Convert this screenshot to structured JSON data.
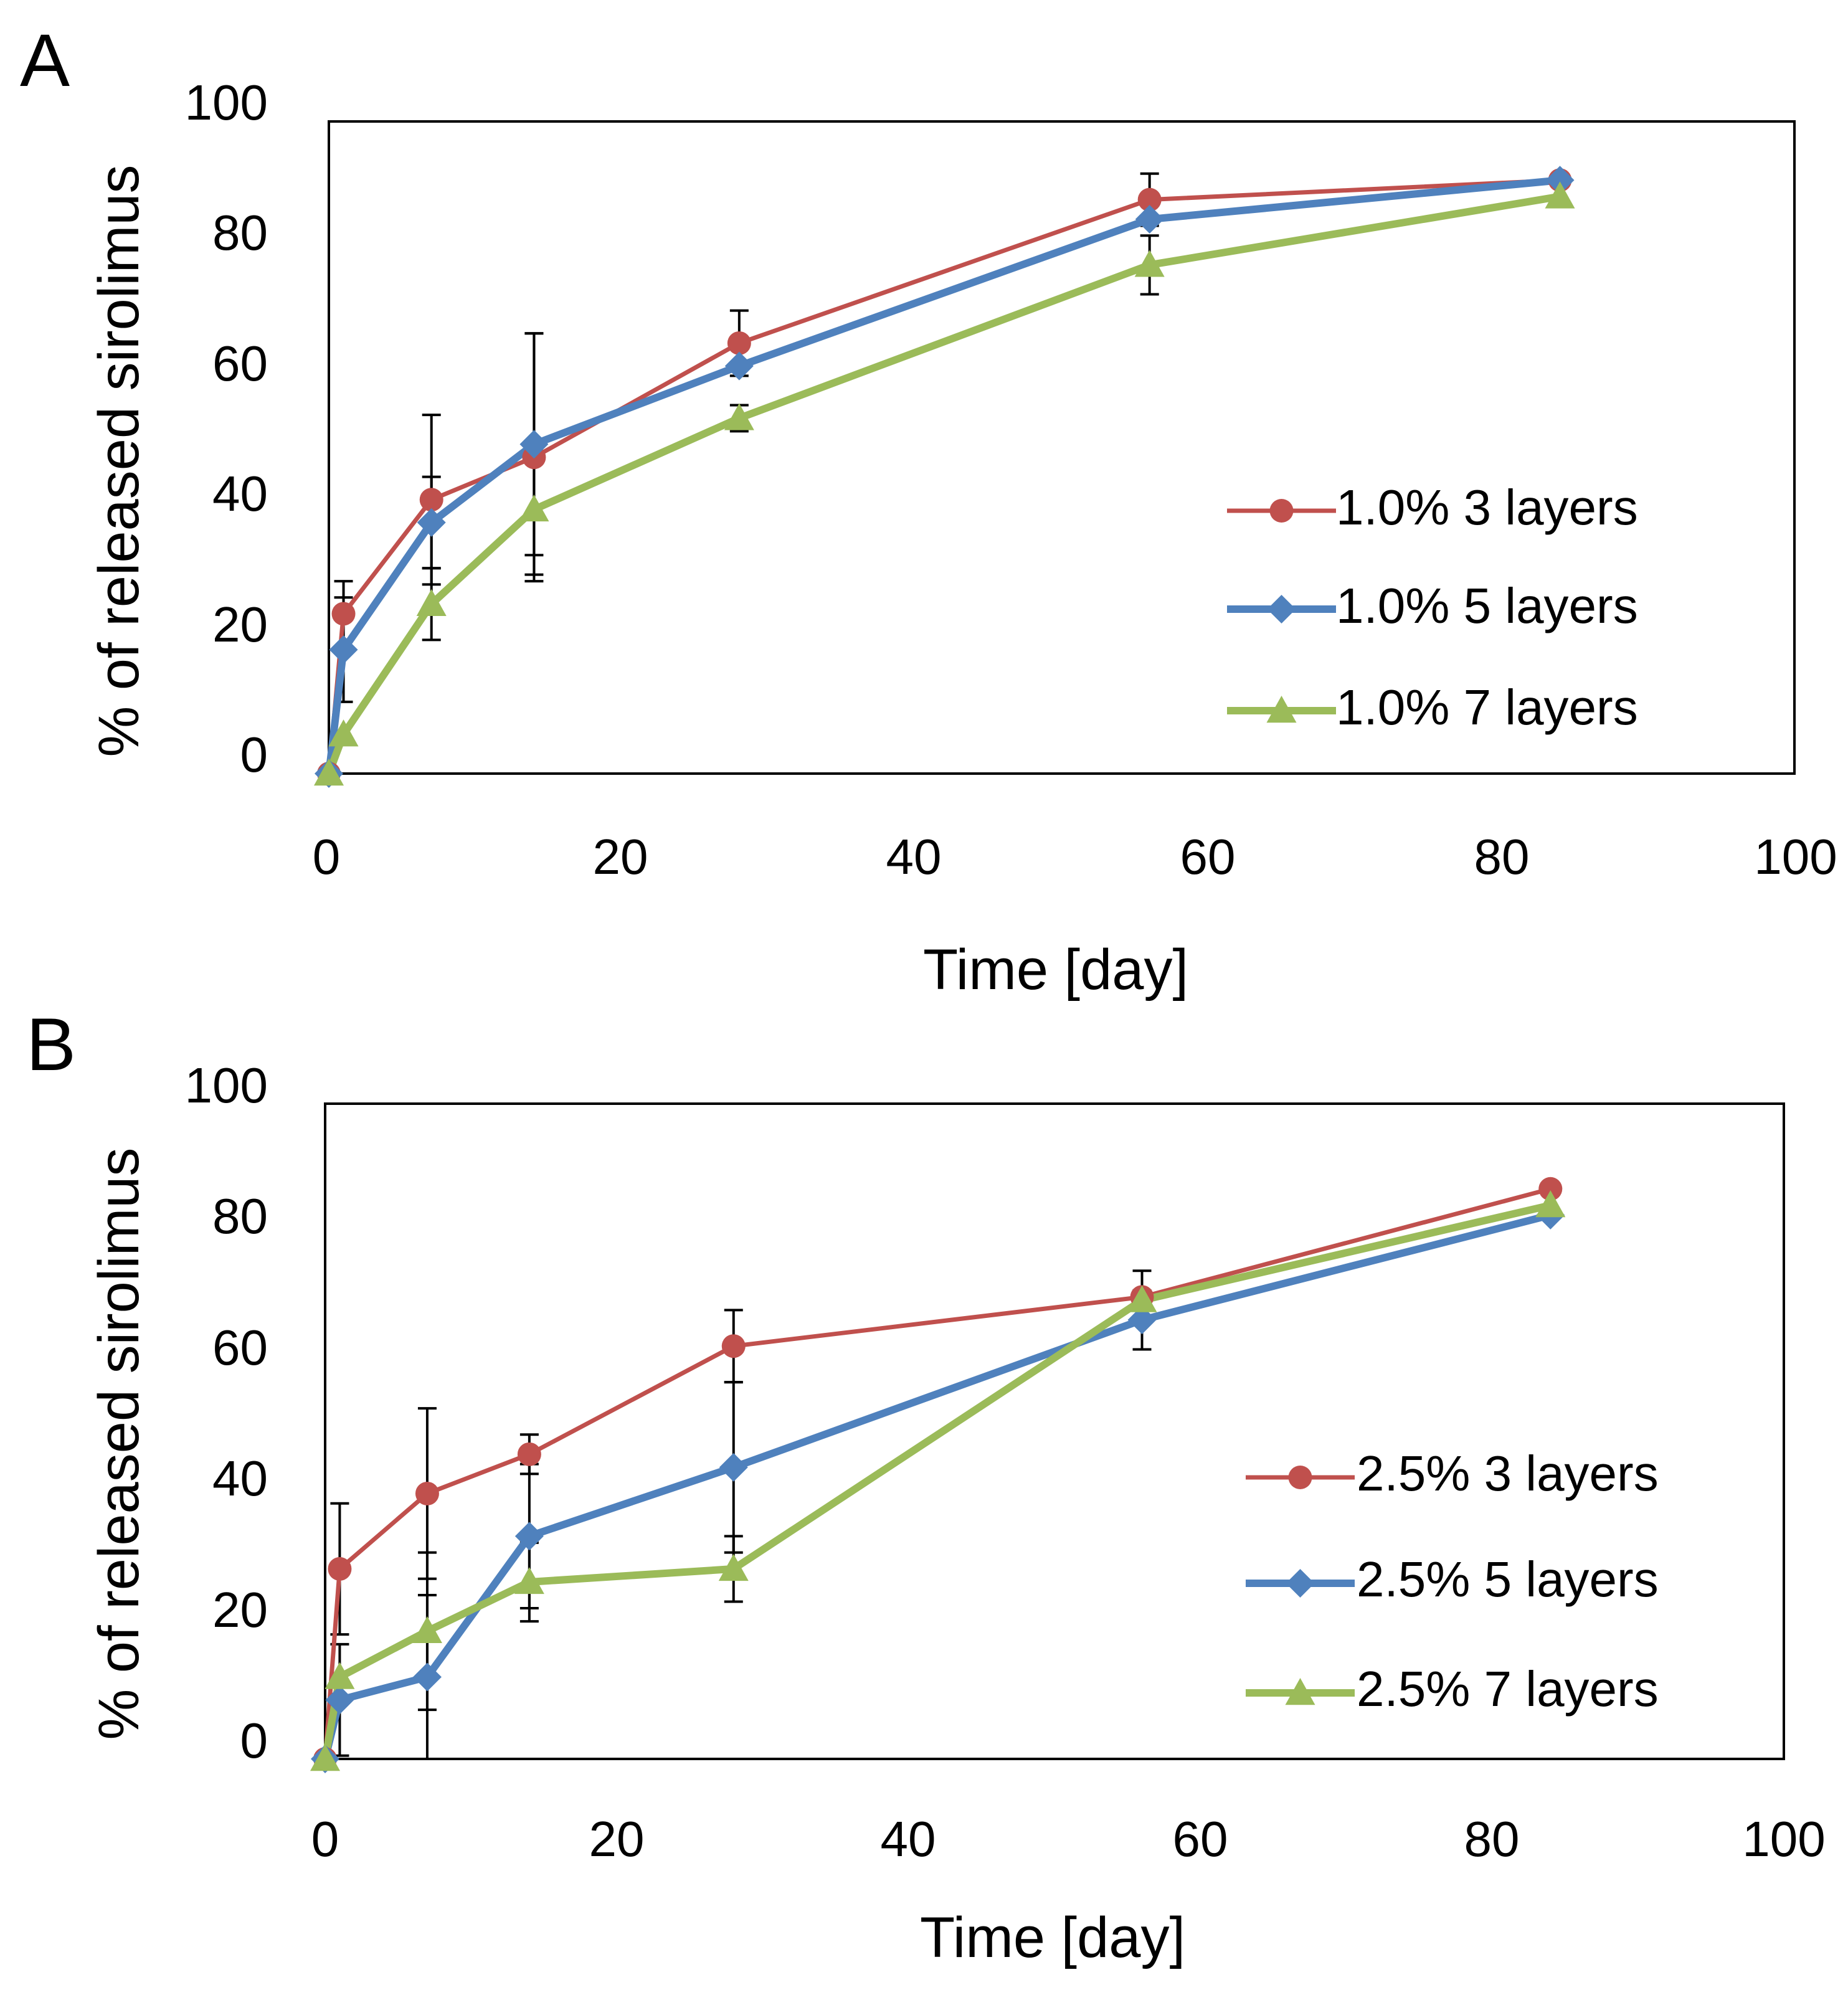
{
  "chart_data": [
    {
      "panel_label": "A",
      "type": "line",
      "title": "",
      "xlabel": "Time [day]",
      "ylabel": "% of released sirolimus",
      "xlim": [
        0,
        100
      ],
      "ylim": [
        0,
        100
      ],
      "x_ticks": [
        "0",
        "20",
        "40",
        "60",
        "80",
        "100"
      ],
      "y_ticks": [
        "0",
        "20",
        "40",
        "60",
        "80",
        "100"
      ],
      "grid": false,
      "legend_position": "right-middle",
      "x": [
        0,
        1,
        7,
        14,
        28,
        56,
        84
      ],
      "series": [
        {
          "name": "1.0% 3 layers",
          "color": "#C0504D",
          "marker": "circle",
          "values": [
            0,
            24.5,
            42,
            48.5,
            66,
            88,
            91
          ],
          "errors": [
            0,
            5,
            13,
            19,
            5,
            4,
            0
          ]
        },
        {
          "name": "1.0% 5 layers",
          "color": "#4F81BD",
          "marker": "diamond",
          "values": [
            0,
            19,
            38.5,
            50.5,
            62.5,
            85,
            91
          ],
          "errors": [
            0,
            8,
            7,
            17,
            0,
            0,
            0
          ]
        },
        {
          "name": "1.0% 7 layers",
          "color": "#9BBB59",
          "marker": "triangle",
          "values": [
            0,
            6,
            26,
            40.5,
            54.5,
            78,
            88.5
          ],
          "errors": [
            0,
            0,
            5.5,
            10,
            2,
            4.5,
            0
          ]
        }
      ]
    },
    {
      "panel_label": "B",
      "type": "line",
      "title": "",
      "xlabel": "Time [day]",
      "ylabel": "% of released sirolimus",
      "xlim": [
        0,
        100
      ],
      "ylim": [
        0,
        100
      ],
      "x_ticks": [
        "0",
        "20",
        "40",
        "60",
        "80",
        "100"
      ],
      "y_ticks": [
        "0",
        "20",
        "40",
        "60",
        "80",
        "100"
      ],
      "grid": false,
      "legend_position": "right-middle",
      "x": [
        0,
        1,
        7,
        14,
        28,
        56,
        84
      ],
      "series": [
        {
          "name": "2.5% 3 layers",
          "color": "#C0504D",
          "marker": "circle",
          "values": [
            0,
            29,
            40.5,
            46.5,
            63,
            70.5,
            87
          ],
          "errors": [
            0,
            10,
            13,
            3,
            5.5,
            4,
            0
          ]
        },
        {
          "name": "2.5% 5 layers",
          "color": "#4F81BD",
          "marker": "diamond",
          "values": [
            0,
            9,
            12.5,
            34,
            44.5,
            67,
            83
          ],
          "errors": [
            0,
            8.5,
            12.5,
            11,
            13,
            4.5,
            0
          ]
        },
        {
          "name": "2.5% 7 layers",
          "color": "#9BBB59",
          "marker": "triangle",
          "values": [
            0,
            12.5,
            19.5,
            27,
            29,
            70,
            84.5
          ],
          "errors": [
            0,
            0,
            12,
            6,
            5,
            0,
            0
          ]
        }
      ]
    }
  ]
}
